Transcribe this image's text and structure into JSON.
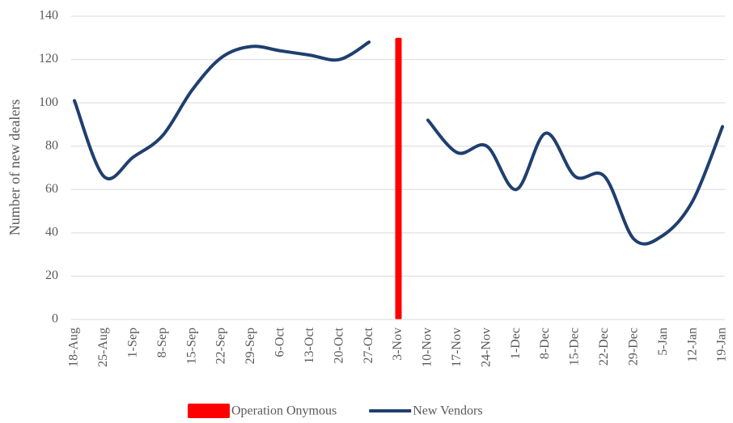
{
  "chart_data": {
    "type": "line",
    "y_label": "Number of new dealers",
    "categories": [
      "18-Aug",
      "25-Aug",
      "1-Sep",
      "8-Sep",
      "15-Sep",
      "22-Sep",
      "29-Sep",
      "6-Oct",
      "13-Oct",
      "20-Oct",
      "27-Oct",
      "3-Nov",
      "10-Nov",
      "17-Nov",
      "24-Nov",
      "1-Dec",
      "8-Dec",
      "15-Dec",
      "22-Dec",
      "29-Dec",
      "5-Jan",
      "12-Jan",
      "19-Jan"
    ],
    "series": [
      {
        "name": "Operation Onymous",
        "type": "bar",
        "color": "#ff0000",
        "values": [
          null,
          null,
          null,
          null,
          null,
          null,
          null,
          null,
          null,
          null,
          null,
          130,
          null,
          null,
          null,
          null,
          null,
          null,
          null,
          null,
          null,
          null,
          null
        ]
      },
      {
        "name": "New Vendors",
        "type": "line",
        "color": "#1f3f6e",
        "values": [
          101,
          66,
          75,
          85,
          106,
          121,
          126,
          124,
          122,
          120,
          128,
          null,
          92,
          77,
          80,
          60,
          86,
          66,
          66,
          37,
          39,
          55,
          89
        ]
      }
    ],
    "ylim": [
      0,
      140
    ],
    "yticks": [
      0,
      20,
      40,
      60,
      80,
      100,
      120,
      140
    ],
    "grid": true,
    "legend": "bottom"
  }
}
